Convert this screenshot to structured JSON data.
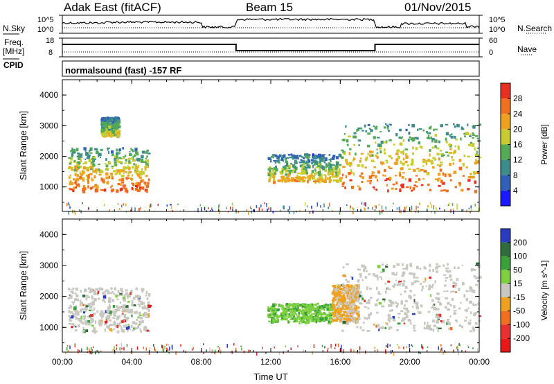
{
  "header": {
    "station": "Adak East (fitACF)",
    "beam": "Beam 15",
    "date": "01/Nov/2015"
  },
  "top_labels": {
    "nsky": "N.Sky",
    "nsearch": "N.Search",
    "freq_l1": "Freq.",
    "freq_l2": "[MHz]",
    "cpid": "CPID",
    "nave": "Nave",
    "nsky_hi": "10^5",
    "nsky_lo": "10^0",
    "freq_hi": "18",
    "freq_lo": "8",
    "nave_hi": "60",
    "nave_lo": "0",
    "cpid_text": "normalsound (fast) -157 RF"
  },
  "chart_data": [
    {
      "type": "heatmap",
      "title": "",
      "quantity": "Power",
      "colorbar_label": "Power [dB]",
      "colorbar_ticks": [
        "4",
        "8",
        "12",
        "16",
        "20",
        "24",
        "28"
      ],
      "colorbar_colors": [
        "#1a1aff",
        "#3060b8",
        "#3c8c8c",
        "#55aa55",
        "#c8cc30",
        "#f0a020",
        "#f07020",
        "#e83020"
      ],
      "ylabel": "Slant Range [km]",
      "ylim": [
        200,
        4500
      ],
      "yticks": [
        "1000",
        "2000",
        "3000",
        "4000"
      ],
      "xlim": [
        "00:00",
        "24:00"
      ],
      "grid": false,
      "echo_regions": [
        {
          "t_start": 0.3,
          "t_end": 5.0,
          "r_min": 900,
          "r_max": 2300,
          "peak_db": 28
        },
        {
          "t_start": 2.2,
          "t_end": 3.2,
          "r_min": 2700,
          "r_max": 3300,
          "peak_db": 20
        },
        {
          "t_start": 11.8,
          "t_end": 16.0,
          "r_min": 1200,
          "r_max": 2100,
          "peak_db": 22
        },
        {
          "t_start": 16.0,
          "t_end": 24.0,
          "r_min": 900,
          "r_max": 3100,
          "peak_db": 28
        }
      ]
    },
    {
      "type": "heatmap",
      "title": "",
      "quantity": "Velocity",
      "colorbar_label": "Velocity [m s^-1]",
      "colorbar_ticks": [
        "200",
        "100",
        "50",
        "15",
        "-15",
        "-50",
        "-100",
        "-200"
      ],
      "colorbar_colors": [
        "#2a3cc0",
        "#2e6e3c",
        "#3aa03a",
        "#7ed040",
        "#c8c8c0",
        "#f0a020",
        "#f07020",
        "#e83030",
        "#e81818"
      ],
      "ylabel": "Slant Range [km]",
      "ylim": [
        200,
        4500
      ],
      "yticks": [
        "1000",
        "2000",
        "3000",
        "4000"
      ],
      "xlim": [
        "00:00",
        "24:00"
      ],
      "xticks": [
        "00:00",
        "04:00",
        "08:00",
        "12:00",
        "16:00",
        "20:00",
        "00:00"
      ],
      "xlabel": "Time UT",
      "grid": false,
      "echo_regions": [
        {
          "t_start": 0.3,
          "t_end": 5.0,
          "r_min": 900,
          "r_max": 2300,
          "velocity": 0
        },
        {
          "t_start": 11.8,
          "t_end": 15.5,
          "r_min": 1200,
          "r_max": 1800,
          "velocity": 30
        },
        {
          "t_start": 15.5,
          "t_end": 17.0,
          "r_min": 1200,
          "r_max": 2400,
          "velocity": -40
        },
        {
          "t_start": 16.0,
          "t_end": 24.0,
          "r_min": 900,
          "r_max": 3100,
          "velocity": 0
        }
      ]
    }
  ]
}
